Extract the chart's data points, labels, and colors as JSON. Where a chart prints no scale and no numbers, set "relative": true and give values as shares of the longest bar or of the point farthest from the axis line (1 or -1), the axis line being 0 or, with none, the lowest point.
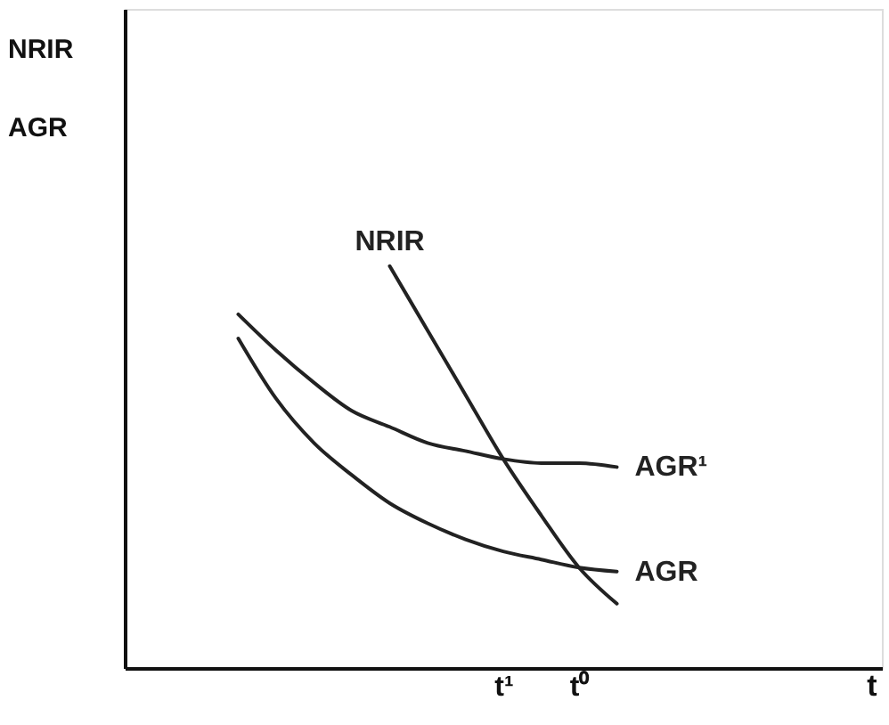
{
  "chart_data": {
    "type": "line",
    "relative": true,
    "ylabel": "NRIR\nAGR",
    "xlabel": "t",
    "categories": [
      null,
      null,
      null,
      null,
      null,
      null,
      null,
      null,
      null,
      null,
      "t¹",
      null,
      "t⁰",
      null,
      null,
      null,
      null,
      null,
      null,
      null,
      null
    ],
    "grid": false,
    "marker": "none",
    "line_style": "solid",
    "series": [
      {
        "name": "NRIR",
        "color": "#222222",
        "values": [
          null,
          null,
          null,
          null,
          null,
          null,
          null,
          1.0,
          0.84,
          0.68,
          0.52,
          0.38,
          0.25,
          0.16,
          null,
          null,
          null,
          null,
          null,
          null,
          null
        ]
      },
      {
        "name": "AGR¹",
        "color": "#222222",
        "values": [
          null,
          null,
          null,
          0.88,
          0.79,
          0.71,
          0.64,
          0.6,
          0.56,
          0.54,
          0.52,
          0.51,
          0.51,
          0.5,
          null,
          null,
          null,
          null,
          null,
          null,
          null
        ]
      },
      {
        "name": "AGR",
        "color": "#222222",
        "values": [
          null,
          null,
          null,
          0.82,
          0.67,
          0.56,
          0.48,
          0.41,
          0.36,
          0.32,
          0.29,
          0.27,
          0.25,
          0.24,
          null,
          null,
          null,
          null,
          null,
          null,
          null
        ]
      }
    ]
  }
}
